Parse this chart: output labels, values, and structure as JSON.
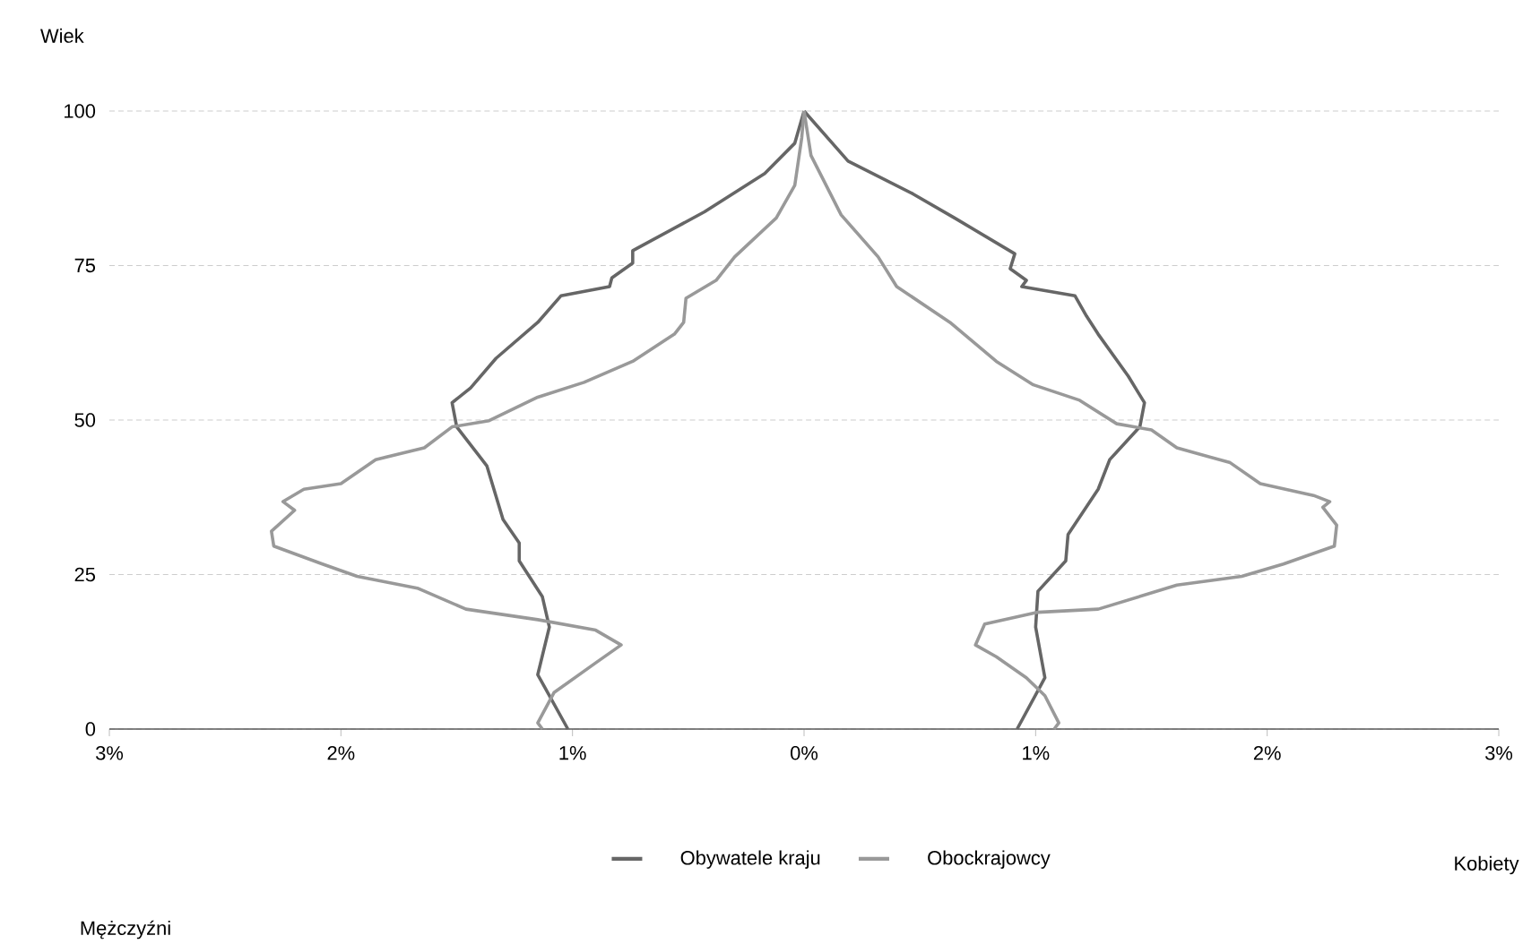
{
  "chart_data": {
    "type": "line",
    "ylabel": "Wiek",
    "annotations": [
      "Kobiety",
      "Mężczyźni"
    ],
    "xlim": [
      -3,
      3
    ],
    "ylim": [
      0,
      100
    ],
    "xticks": [
      {
        "value": -3,
        "label": "3%"
      },
      {
        "value": -2,
        "label": "2%"
      },
      {
        "value": -1,
        "label": "1%"
      },
      {
        "value": 0,
        "label": "0%"
      },
      {
        "value": 1,
        "label": "1%"
      },
      {
        "value": 2,
        "label": "2%"
      },
      {
        "value": 3,
        "label": "3%"
      }
    ],
    "yticks": [
      0,
      25,
      50,
      75,
      100
    ],
    "grid": "y",
    "legend": "bottom",
    "series": [
      {
        "name": "Obywatele kraju",
        "color": "#666666",
        "x": [
          -1.02,
          -1.15,
          -1.1,
          -1.13,
          -1.23,
          -1.23,
          -1.3,
          -1.37,
          -1.5,
          -1.52,
          -1.44,
          -1.33,
          -1.15,
          -1.05,
          -0.84,
          -0.83,
          -0.74,
          -0.74,
          -0.43,
          -0.17,
          -0.04,
          0
        ],
        "values": [
          0,
          8.8,
          16.5,
          21.4,
          27.2,
          30.1,
          33.9,
          42.6,
          48.9,
          52.8,
          55.2,
          60,
          65.8,
          70.1,
          71.6,
          73,
          75.4,
          77.4,
          83.7,
          89.9,
          94.8,
          100
        ]
      },
      {
        "name": "Obockrajowcy",
        "color": "#999999",
        "x": [
          -1.13,
          -1.15,
          -1.08,
          -0.9,
          -0.79,
          -0.9,
          -1.15,
          -1.46,
          -1.67,
          -1.93,
          -2.08,
          -2.29,
          -2.3,
          -2.2,
          -2.25,
          -2.16,
          -2.0,
          -1.85,
          -1.64,
          -1.52,
          -1.36,
          -1.15,
          -0.95,
          -0.74,
          -0.56,
          -0.52,
          -0.51,
          -0.38,
          -0.3,
          -0.12,
          -0.04,
          -0.01,
          0
        ],
        "values": [
          0,
          1,
          5.9,
          10.7,
          13.6,
          16,
          17.7,
          19.4,
          22.8,
          24.7,
          26.7,
          29.6,
          32,
          35.4,
          36.8,
          38.8,
          39.7,
          43.6,
          45.5,
          48.9,
          49.9,
          53.7,
          56.1,
          59.5,
          63.9,
          65.8,
          69.7,
          72.6,
          76.4,
          82.7,
          88,
          95.7,
          100
        ]
      },
      {
        "color": "#666666",
        "x": [
          0.92,
          1.04,
          1.0,
          1.01,
          1.13,
          1.14,
          1.27,
          1.32,
          1.45,
          1.47,
          1.4,
          1.27,
          1.22,
          1.17,
          0.94,
          0.96,
          0.89,
          0.91,
          0.65,
          0.47,
          0.19,
          0
        ],
        "values": [
          0,
          8.3,
          16.5,
          22.3,
          27.2,
          31.5,
          38.8,
          43.6,
          48.9,
          52.8,
          57.1,
          63.9,
          66.8,
          70.1,
          71.6,
          72.6,
          74.5,
          76.9,
          82.7,
          86.6,
          91.9,
          100
        ]
      },
      {
        "color": "#999999",
        "x": [
          1.08,
          1.1,
          1.04,
          0.96,
          0.83,
          0.74,
          0.78,
          1.01,
          1.27,
          1.61,
          1.89,
          2.07,
          2.29,
          2.3,
          2.24,
          2.27,
          2.2,
          1.97,
          1.84,
          1.61,
          1.5,
          1.35,
          1.19,
          0.99,
          0.83,
          0.63,
          0.4,
          0.32,
          0.16,
          0.03,
          0
        ],
        "values": [
          0,
          1,
          5.4,
          8.3,
          11.7,
          13.6,
          17,
          18.9,
          19.4,
          23.3,
          24.7,
          26.7,
          29.6,
          33,
          35.9,
          36.8,
          37.8,
          39.7,
          43.1,
          45.5,
          48.4,
          49.4,
          53.2,
          55.7,
          59.5,
          65.8,
          71.6,
          76.4,
          83.2,
          92.8,
          100
        ]
      }
    ]
  }
}
